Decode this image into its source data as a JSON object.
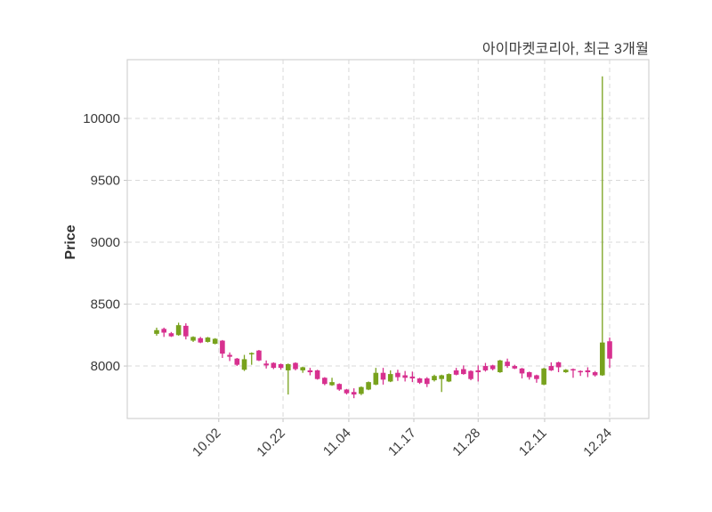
{
  "chart_data": {
    "type": "candlestick",
    "title": "아이마켓코리아, 최근 3개월",
    "ylabel": "Price",
    "xlabel": "",
    "grid": true,
    "legend": "none",
    "y_ticks": [
      8000,
      8500,
      9000,
      9500,
      10000
    ],
    "ylim": [
      7576,
      10475
    ],
    "x_tick_labels": [
      "10.02",
      "10.22",
      "11.04",
      "11.17",
      "11.28",
      "12.11",
      "12.24"
    ],
    "x_tick_index": [
      8.5,
      17.3,
      26.3,
      35.2,
      44.0,
      53.1,
      62.0
    ],
    "colors": {
      "up": "#78A21D",
      "down": "#D7308F"
    },
    "candles_format": [
      "open",
      "high",
      "low",
      "close"
    ],
    "candles": [
      [
        8260,
        8310,
        8245,
        8290
      ],
      [
        8300,
        8310,
        8235,
        8270
      ],
      [
        8265,
        8275,
        8235,
        8240
      ],
      [
        8250,
        8350,
        8245,
        8330
      ],
      [
        8325,
        8345,
        8215,
        8240
      ],
      [
        8205,
        8240,
        8195,
        8235
      ],
      [
        8225,
        8235,
        8185,
        8190
      ],
      [
        8195,
        8235,
        8190,
        8230
      ],
      [
        8180,
        8225,
        8175,
        8220
      ],
      [
        8205,
        8210,
        8065,
        8100
      ],
      [
        8090,
        8110,
        8040,
        8075
      ],
      [
        8060,
        8065,
        8000,
        8010
      ],
      [
        7970,
        8090,
        7960,
        8055
      ],
      [
        8100,
        8110,
        8010,
        8105
      ],
      [
        8125,
        8130,
        8040,
        8045
      ],
      [
        8020,
        8045,
        7980,
        8005
      ],
      [
        8025,
        8030,
        7975,
        7985
      ],
      [
        8015,
        8020,
        7970,
        7985
      ],
      [
        7965,
        8020,
        7770,
        8015
      ],
      [
        8025,
        8030,
        7965,
        7975
      ],
      [
        7965,
        7995,
        7945,
        7990
      ],
      [
        7965,
        7985,
        7925,
        7950
      ],
      [
        7965,
        7970,
        7890,
        7895
      ],
      [
        7905,
        7910,
        7845,
        7855
      ],
      [
        7845,
        7905,
        7840,
        7870
      ],
      [
        7855,
        7860,
        7800,
        7810
      ],
      [
        7810,
        7815,
        7770,
        7780
      ],
      [
        7790,
        7820,
        7740,
        7770
      ],
      [
        7775,
        7835,
        7765,
        7830
      ],
      [
        7810,
        7875,
        7805,
        7870
      ],
      [
        7850,
        7985,
        7845,
        7945
      ],
      [
        7945,
        7985,
        7850,
        7890
      ],
      [
        7875,
        7965,
        7870,
        7935
      ],
      [
        7945,
        7970,
        7880,
        7910
      ],
      [
        7925,
        7960,
        7875,
        7905
      ],
      [
        7915,
        7955,
        7870,
        7900
      ],
      [
        7900,
        7905,
        7855,
        7865
      ],
      [
        7900,
        7910,
        7830,
        7855
      ],
      [
        7885,
        7930,
        7875,
        7920
      ],
      [
        7895,
        7930,
        7790,
        7925
      ],
      [
        7875,
        7940,
        7870,
        7935
      ],
      [
        7965,
        7985,
        7925,
        7930
      ],
      [
        7975,
        8005,
        7930,
        7935
      ],
      [
        7960,
        7965,
        7885,
        7895
      ],
      [
        7965,
        8005,
        7875,
        7950
      ],
      [
        8000,
        8025,
        7955,
        7965
      ],
      [
        8005,
        8010,
        7965,
        7975
      ],
      [
        7950,
        8050,
        7945,
        8045
      ],
      [
        8035,
        8060,
        7985,
        8000
      ],
      [
        8000,
        8010,
        7975,
        7980
      ],
      [
        7980,
        7985,
        7900,
        7940
      ],
      [
        7950,
        7955,
        7890,
        7910
      ],
      [
        7925,
        7930,
        7865,
        7895
      ],
      [
        7850,
        7985,
        7845,
        7980
      ],
      [
        8000,
        8030,
        7960,
        7965
      ],
      [
        8030,
        8035,
        7950,
        7990
      ],
      [
        7950,
        7975,
        7945,
        7970
      ],
      [
        7975,
        7980,
        7905,
        7970
      ],
      [
        7960,
        7965,
        7920,
        7950
      ],
      [
        7965,
        7990,
        7910,
        7950
      ],
      [
        7950,
        7960,
        7915,
        7925
      ],
      [
        7925,
        10340,
        7920,
        8190
      ],
      [
        8200,
        8230,
        7985,
        8060
      ]
    ]
  }
}
